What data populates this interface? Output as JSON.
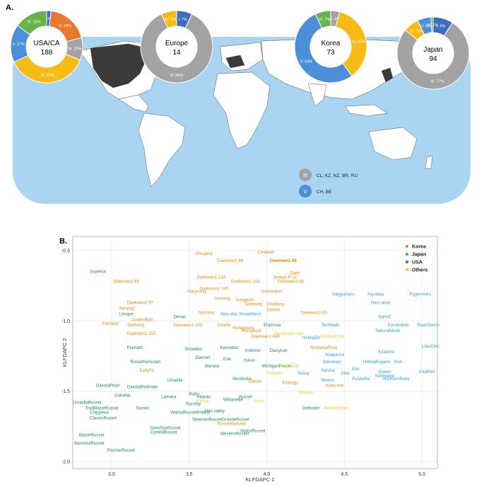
{
  "panel_a_label": "A.",
  "panel_b_label": "B.",
  "colors": {
    "ocean": "#a9d4f2",
    "land": "#ffffff",
    "highlight": "#3a3a3a",
    "I": "#3e6dc0",
    "II": "#e8792e",
    "III": "#a3a3a3",
    "IV": "#f7bb16",
    "V": "#4a8fd8",
    "VI": "#6ab24a",
    "korea": "#e08a14",
    "japan": "#2ea0dc",
    "usa": "#1a9155",
    "others": "#e8cc2c"
  },
  "donuts": [
    {
      "name": "USA/CA",
      "count": "188",
      "segments": [
        {
          "g": "I",
          "label": "I. 2%",
          "pct": 2
        },
        {
          "g": "II",
          "label": "II. 19%",
          "pct": 19
        },
        {
          "g": "III",
          "label": "III. 10%",
          "pct": 10
        },
        {
          "g": "IV",
          "label": "IV. 37%",
          "pct": 37
        },
        {
          "g": "V",
          "label": "V. 17%",
          "pct": 17
        },
        {
          "g": "VI",
          "label": "VI. 15%",
          "pct": 15
        }
      ]
    },
    {
      "name": "Europe",
      "count": "14",
      "segments": [
        {
          "g": "I",
          "label": "I. 7%",
          "pct": 7
        },
        {
          "g": "III",
          "label": "III. 86%",
          "pct": 86
        },
        {
          "g": "IV",
          "label": "IV. 7%",
          "pct": 7
        }
      ]
    },
    {
      "name": "Korea",
      "count": "73",
      "segments": [
        {
          "g": "III",
          "label": "III. 4%",
          "pct": 4
        },
        {
          "g": "IV",
          "label": "IV. 36%",
          "pct": 36
        },
        {
          "g": "V",
          "label": "V. 53%",
          "pct": 53
        },
        {
          "g": "VI",
          "label": "VI. 7%",
          "pct": 7
        }
      ]
    },
    {
      "name": "Japan",
      "count": "94",
      "segments": [
        {
          "g": "I",
          "label": "I. 9%",
          "pct": 9
        },
        {
          "g": "III",
          "label": "III. 77%",
          "pct": 77
        },
        {
          "g": "IV",
          "label": "IV. 7%",
          "pct": 7
        },
        {
          "g": "V",
          "label": "V. 6%",
          "pct": 6
        },
        {
          "g": "VI",
          "label": "VI. 1%",
          "pct": 1
        }
      ]
    }
  ],
  "map_legend": [
    {
      "symbol": "III",
      "text": "CL, KZ, NZ, BR, RU"
    },
    {
      "symbol": "V",
      "text": "CH, BE"
    }
  ],
  "chart_data": {
    "type": "scatter",
    "xlabel": "KLFDAPC 1",
    "ylabel": "KLFDAPC 2",
    "xlim": [
      2.75,
      5.1
    ],
    "ylim": [
      -2.05,
      -0.4
    ],
    "xticks": [
      3.0,
      3.5,
      4.0,
      4.5,
      5.0
    ],
    "xtick_labels": [
      "3.0",
      "3.5",
      "4.0",
      "4.5",
      "5.0"
    ],
    "yticks": [
      -0.5,
      -1.0,
      -1.5,
      -2.0
    ],
    "ytick_labels": [
      "-0.5",
      "-1.0",
      "-1.5",
      "-2.0"
    ],
    "legend": [
      {
        "name": "Korea",
        "color": "#e08a14"
      },
      {
        "name": "Japan",
        "color": "#2ea0dc"
      },
      {
        "name": "USA",
        "color": "#1a9155"
      },
      {
        "name": "Others",
        "color": "#e8cc2c"
      }
    ],
    "legend_position": "top-right",
    "points": [
      {
        "t": "Chubaek",
        "x": 3.94,
        "y": -0.52,
        "g": "Korea"
      },
      {
        "t": "Chugang",
        "x": 3.54,
        "y": -0.53,
        "g": "Korea"
      },
      {
        "t": "Daekwan2-66",
        "x": 3.68,
        "y": -0.58,
        "g": "Korea"
      },
      {
        "t": "Daekwan2-88",
        "x": 4.02,
        "y": -0.58,
        "g": "Korea",
        "bold": true
      },
      {
        "t": "Daekwan2-65",
        "x": 3.01,
        "y": -0.73,
        "g": "Korea"
      },
      {
        "t": "Superior",
        "x": 2.86,
        "y": -0.66,
        "g": "USA"
      },
      {
        "t": "Daekwan1-143",
        "x": 3.55,
        "y": -0.7,
        "g": "Korea"
      },
      {
        "t": "Daekwan1-144",
        "x": 3.77,
        "y": -0.73,
        "g": "Korea"
      },
      {
        "t": "Jankyo-P-14",
        "x": 4.04,
        "y": -0.7,
        "g": "Korea"
      },
      {
        "t": "Daeji",
        "x": 4.15,
        "y": -0.67,
        "g": "Korea"
      },
      {
        "t": "Daekwan2-68",
        "x": 4.07,
        "y": -0.73,
        "g": "Korea"
      },
      {
        "t": "Haryeong",
        "x": 3.49,
        "y": -0.8,
        "g": "Korea"
      },
      {
        "t": "Daekwan1-145",
        "x": 3.57,
        "y": -0.78,
        "g": "Korea"
      },
      {
        "t": "Goseonbon",
        "x": 3.96,
        "y": -0.8,
        "g": "Korea"
      },
      {
        "t": "Daekwan2-57",
        "x": 3.1,
        "y": -0.88,
        "g": "Korea"
      },
      {
        "t": "Arirang2",
        "x": 3.05,
        "y": -0.92,
        "g": "Korea"
      },
      {
        "t": "Gawang",
        "x": 3.66,
        "y": -0.85,
        "g": "Korea"
      },
      {
        "t": "Gangwon",
        "x": 3.8,
        "y": -0.86,
        "g": "Korea"
      },
      {
        "t": "Gaheung",
        "x": 3.86,
        "y": -0.89,
        "g": "Korea"
      },
      {
        "t": "Chudong",
        "x": 4.0,
        "y": -0.89,
        "g": "Korea"
      },
      {
        "t": "Dowon",
        "x": 4.0,
        "y": -0.93,
        "g": "Korea"
      },
      {
        "t": "Daekwan2-60",
        "x": 4.22,
        "y": -0.95,
        "g": "Korea"
      },
      {
        "t": "Lenape",
        "x": 3.05,
        "y": -0.96,
        "g": "USA"
      },
      {
        "t": "Denali",
        "x": 3.4,
        "y": -0.98,
        "g": "USA"
      },
      {
        "t": "Namseo",
        "x": 3.56,
        "y": -0.95,
        "g": "Korea"
      },
      {
        "t": "Aino-aka",
        "x": 3.7,
        "y": -0.96,
        "g": "Japan"
      },
      {
        "t": "SnowMarch",
        "x": 3.82,
        "y": -0.96,
        "g": "Japan"
      },
      {
        "t": "Sanjyumaru",
        "x": 4.42,
        "y": -0.82,
        "g": "Japan"
      },
      {
        "t": "Aiyutaka",
        "x": 4.65,
        "y": -0.82,
        "g": "Japan"
      },
      {
        "t": "Fugenmaru",
        "x": 4.92,
        "y": -0.82,
        "g": "Japan"
      },
      {
        "t": "Haru-akari",
        "x": 4.67,
        "y": -0.88,
        "g": "Japan"
      },
      {
        "t": "GoldenBall",
        "x": 3.13,
        "y": -1.0,
        "g": "Korea"
      },
      {
        "t": "Seohong",
        "x": 3.1,
        "y": -1.04,
        "g": "Korea"
      },
      {
        "t": "Eunseon",
        "x": 2.94,
        "y": -1.03,
        "g": "Korea"
      },
      {
        "t": "Daekwan1-149",
        "x": 3.4,
        "y": -1.04,
        "g": "Korea"
      },
      {
        "t": "Gorella",
        "x": 3.68,
        "y": -1.04,
        "g": "Korea"
      },
      {
        "t": "Hongyoung",
        "x": 3.78,
        "y": -1.06,
        "g": "Korea"
      },
      {
        "t": "Hongbook",
        "x": 3.84,
        "y": -1.08,
        "g": "Korea"
      },
      {
        "t": "Eramosa",
        "x": 3.98,
        "y": -1.04,
        "g": "USA"
      },
      {
        "t": "PentlandCrown",
        "x": 4.05,
        "y": -1.1,
        "g": "Others"
      },
      {
        "t": "Norin1",
        "x": 4.72,
        "y": -0.98,
        "g": "Japan"
      },
      {
        "t": "Konafubuki",
        "x": 4.78,
        "y": -1.04,
        "g": "Japan"
      },
      {
        "t": "PearlStarch",
        "x": 4.97,
        "y": -1.04,
        "g": "Japan"
      },
      {
        "t": "Tachiwalu",
        "x": 4.35,
        "y": -1.04,
        "g": "Japan"
      },
      {
        "t": "Sakurafubuki",
        "x": 4.7,
        "y": -1.08,
        "g": "Japan"
      },
      {
        "t": "Daekwan1-153",
        "x": 3.1,
        "y": -1.1,
        "g": "Korea"
      },
      {
        "t": "Daekwan1-146",
        "x": 3.9,
        "y": -1.12,
        "g": "Korea"
      },
      {
        "t": "GoldenEcho",
        "x": 4.35,
        "y": -1.12,
        "g": "Others"
      },
      {
        "t": "Hokkai50",
        "x": 4.23,
        "y": -1.13,
        "g": "Japan"
      },
      {
        "t": "Klamath",
        "x": 3.1,
        "y": -1.2,
        "g": "USA"
      },
      {
        "t": "Snowden",
        "x": 3.47,
        "y": -1.21,
        "g": "USA"
      },
      {
        "t": "Kennebec",
        "x": 3.7,
        "y": -1.2,
        "g": "USA"
      },
      {
        "t": "Andover",
        "x": 3.86,
        "y": -1.22,
        "g": "USA"
      },
      {
        "t": "DaisyLee",
        "x": 4.02,
        "y": -1.22,
        "g": "USA"
      },
      {
        "t": "RemarkaRose",
        "x": 4.28,
        "y": -1.2,
        "g": "Korea"
      },
      {
        "t": "LilasChip",
        "x": 5.0,
        "y": -1.19,
        "g": "Japan"
      },
      {
        "t": "Kitahime",
        "x": 4.72,
        "y": -1.23,
        "g": "Japan"
      },
      {
        "t": "Kitakamui",
        "x": 4.38,
        "y": -1.25,
        "g": "Japan"
      },
      {
        "t": "Seinanaki",
        "x": 4.36,
        "y": -1.3,
        "g": "Japan"
      },
      {
        "t": "RusselNorkotah",
        "x": 3.12,
        "y": -1.3,
        "g": "USA"
      },
      {
        "t": "Dakmet",
        "x": 3.54,
        "y": -1.27,
        "g": "USA"
      },
      {
        "t": "Eva",
        "x": 3.72,
        "y": -1.28,
        "g": "USA"
      },
      {
        "t": "Yukon",
        "x": 3.85,
        "y": -1.29,
        "g": "USA"
      },
      {
        "t": "MichiganPurple",
        "x": 3.97,
        "y": -1.33,
        "g": "USA"
      },
      {
        "t": "IncaGold",
        "x": 4.1,
        "y": -1.33,
        "g": "Others"
      },
      {
        "t": "HokkaiKogane",
        "x": 4.62,
        "y": -1.3,
        "g": "Japan"
      },
      {
        "t": "Irish",
        "x": 4.82,
        "y": -1.3,
        "g": "Japan"
      },
      {
        "t": "EarlyFri",
        "x": 3.18,
        "y": -1.36,
        "g": "Korea"
      },
      {
        "t": "Waneta",
        "x": 3.6,
        "y": -1.33,
        "g": "USA"
      },
      {
        "t": "Seoparo",
        "x": 4.0,
        "y": -1.38,
        "g": "Others"
      },
      {
        "t": "Sassy",
        "x": 4.2,
        "y": -1.38,
        "g": "Japan"
      },
      {
        "t": "Haruka",
        "x": 4.35,
        "y": -1.36,
        "g": "Japan"
      },
      {
        "t": "Inka",
        "x": 4.48,
        "y": -1.38,
        "g": "Japan"
      },
      {
        "t": "Eve",
        "x": 4.55,
        "y": -1.35,
        "g": "Japan"
      },
      {
        "t": "Queen",
        "x": 4.72,
        "y": -1.37,
        "g": "Japan"
      },
      {
        "t": "Purplefire",
        "x": 4.55,
        "y": -1.42,
        "g": "Japan"
      },
      {
        "t": "Northwind",
        "x": 4.7,
        "y": -1.4,
        "g": "Japan"
      },
      {
        "t": "InkaRed",
        "x": 4.98,
        "y": -1.37,
        "g": "Japan"
      },
      {
        "t": "Monticello",
        "x": 3.78,
        "y": -1.42,
        "g": "USA"
      },
      {
        "t": "Gaksal",
        "x": 3.88,
        "y": -1.44,
        "g": "Korea"
      },
      {
        "t": "Kitarogu",
        "x": 4.1,
        "y": -1.45,
        "g": "Korea"
      },
      {
        "t": "Minoro",
        "x": 4.35,
        "y": -1.43,
        "g": "Japan"
      },
      {
        "t": "NorthernRuby",
        "x": 4.75,
        "y": -1.42,
        "g": "Japan"
      },
      {
        "t": "Kobo-ime",
        "x": 4.38,
        "y": -1.47,
        "g": "Korea"
      },
      {
        "t": "DakotaPearl",
        "x": 2.9,
        "y": -1.47,
        "g": "USA"
      },
      {
        "t": "DakotaRedmate",
        "x": 3.1,
        "y": -1.48,
        "g": "USA"
      },
      {
        "t": "Umatilla",
        "x": 3.36,
        "y": -1.43,
        "g": "USA"
      },
      {
        "t": "Dakohia",
        "x": 3.02,
        "y": -1.54,
        "g": "USA"
      },
      {
        "t": "Lamoka",
        "x": 3.32,
        "y": -1.55,
        "g": "USA"
      },
      {
        "t": "Rabu",
        "x": 3.5,
        "y": -1.53,
        "g": "USA"
      },
      {
        "t": "Atlantic",
        "x": 3.55,
        "y": -1.55,
        "g": "USA"
      },
      {
        "t": "Keuka",
        "x": 3.55,
        "y": -1.58,
        "g": "Others"
      },
      {
        "t": "Russet",
        "x": 3.82,
        "y": -1.55,
        "g": "USA"
      },
      {
        "t": "Willamette",
        "x": 3.72,
        "y": -1.57,
        "g": "USA"
      },
      {
        "t": "Rosa",
        "x": 3.92,
        "y": -1.58,
        "g": "Others"
      },
      {
        "t": "Yamasa",
        "x": 4.2,
        "y": -1.52,
        "g": "Others"
      },
      {
        "t": "UmatillaRusset",
        "x": 2.75,
        "y": -1.59,
        "g": "USA"
      },
      {
        "t": "TrailBlazerRusset",
        "x": 2.83,
        "y": -1.63,
        "g": "USA"
      },
      {
        "t": "Norwis",
        "x": 3.16,
        "y": -1.63,
        "g": "USA"
      },
      {
        "t": "Norchip",
        "x": 3.48,
        "y": -1.6,
        "g": "USA"
      },
      {
        "t": "Defender",
        "x": 4.23,
        "y": -1.63,
        "g": "USA"
      },
      {
        "t": "PentlandDell",
        "x": 4.37,
        "y": -1.63,
        "g": "Others"
      },
      {
        "t": "Chippewa",
        "x": 2.86,
        "y": -1.66,
        "g": "USA"
      },
      {
        "t": "Hoo-valley",
        "x": 3.6,
        "y": -1.65,
        "g": "USA"
      },
      {
        "t": "WalnutRussetPolaris",
        "x": 3.38,
        "y": -1.66,
        "g": "USA"
      },
      {
        "t": "ClassicRusset",
        "x": 2.86,
        "y": -1.7,
        "g": "USA"
      },
      {
        "t": "SilvertonRussetGrandeRusset",
        "x": 3.52,
        "y": -1.71,
        "g": "USA"
      },
      {
        "t": "RussetBurbank",
        "x": 3.68,
        "y": -1.74,
        "g": "Korea"
      },
      {
        "t": "GemStarRusset",
        "x": 3.25,
        "y": -1.77,
        "g": "USA"
      },
      {
        "t": "CanelaRusset",
        "x": 3.25,
        "y": -1.8,
        "g": "USA"
      },
      {
        "t": "AlpineRusset",
        "x": 3.83,
        "y": -1.79,
        "g": "USA"
      },
      {
        "t": "WesternRusset",
        "x": 3.7,
        "y": -1.81,
        "g": "USA"
      },
      {
        "t": "BlazerRusset",
        "x": 2.79,
        "y": -1.82,
        "g": "USA"
      },
      {
        "t": "BannockRusset",
        "x": 2.76,
        "y": -1.88,
        "g": "USA"
      },
      {
        "t": "PremierRusset",
        "x": 2.97,
        "y": -1.93,
        "g": "USA"
      }
    ]
  }
}
